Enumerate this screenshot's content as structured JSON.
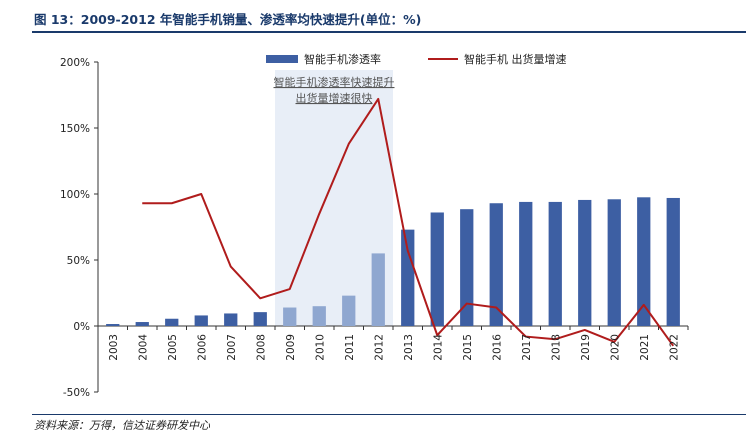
{
  "header": {
    "figure_title": "图 13：2009-2012 年智能手机销量、渗透率均快速提升(单位：%)"
  },
  "footer": {
    "source": "资料来源：万得，信达证券研发中心"
  },
  "chart_data": {
    "type": "bar",
    "categories": [
      "2003",
      "2004",
      "2005",
      "2006",
      "2007",
      "2008",
      "2009",
      "2010",
      "2011",
      "2012",
      "2013",
      "2014",
      "2015",
      "2016",
      "2017",
      "2018",
      "2019",
      "2020",
      "2021",
      "2022"
    ],
    "series": [
      {
        "name": "智能手机渗透率",
        "kind": "bar",
        "color": "#3d5fa3",
        "highlight_color": "#8fa7d0",
        "highlight_categories": [
          "2009",
          "2010",
          "2011",
          "2012"
        ],
        "values": [
          1.5,
          3,
          5.5,
          8,
          9.5,
          10.5,
          14,
          15,
          23,
          55,
          73,
          86,
          88.5,
          93,
          94,
          94,
          95.5,
          96,
          97.5,
          97
        ]
      },
      {
        "name": "智能手机 出货量增速",
        "kind": "line",
        "color": "#b01c1c",
        "values": [
          null,
          93,
          93,
          100,
          45,
          21,
          28,
          85,
          138,
          172,
          57,
          -7,
          17,
          14,
          -8,
          -10,
          -3,
          -12,
          16,
          -15
        ]
      }
    ],
    "y_axis": {
      "ylim": [
        -50,
        200
      ],
      "ticks": [
        -50,
        0,
        50,
        100,
        150,
        200
      ],
      "tick_labels": [
        "-50%",
        "0%",
        "50%",
        "100%",
        "150%",
        "200%"
      ]
    },
    "shaded_region": {
      "from": "2009",
      "to": "2012",
      "color": "#e8eef7"
    },
    "annotation": [
      "智能手机渗透率快速提升",
      "出货量增速很快"
    ],
    "legend_position": "top",
    "grid": false
  }
}
